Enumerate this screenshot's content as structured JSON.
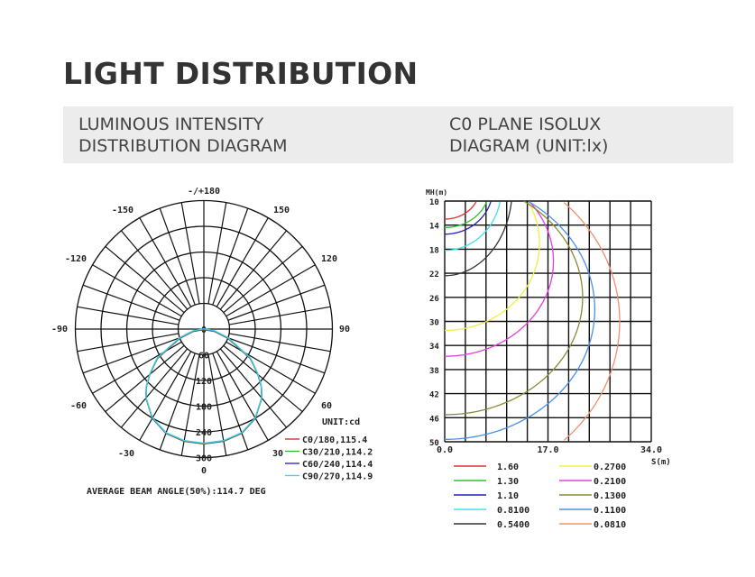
{
  "title": "LIGHT DISTRIBUTION",
  "band": {
    "left_line1": "LUMINOUS INTENSITY",
    "left_line2": "DISTRIBUTION DIAGRAM",
    "right_line1": "C0 PLANE ISOLUX",
    "right_line2": "DIAGRAM (UNIT:lx)"
  },
  "chart_data": [
    {
      "type": "polar",
      "angle_labels": [
        "-/+180",
        "-150",
        "150",
        "-120",
        "120",
        "-90",
        "90",
        "-60",
        "60",
        "-30",
        "30",
        "0"
      ],
      "radial_ticks": [
        "0",
        "60",
        "120",
        "180",
        "240",
        "300"
      ],
      "unit": "UNIT:cd",
      "legend": [
        {
          "name": "C0/180,115.4",
          "color": "#e02020"
        },
        {
          "name": "C30/210,114.2",
          "color": "#20c020"
        },
        {
          "name": "C60/240,114.4",
          "color": "#2020c0"
        },
        {
          "name": "C90/270,114.9",
          "color": "#40d0e0"
        }
      ],
      "gamma_deg": [
        0,
        10,
        20,
        30,
        40,
        45,
        50,
        55,
        58,
        70,
        80,
        90
      ],
      "intensity_cd": [
        267,
        265,
        258,
        240,
        210,
        190,
        165,
        140,
        128,
        60,
        25,
        0
      ],
      "footer": "AVERAGE BEAM ANGLE(50%):114.7 DEG"
    },
    {
      "type": "contour",
      "ylabel": "MH(m)",
      "xlabel": "S(m)",
      "y_ticks": [
        "10",
        "14",
        "18",
        "22",
        "26",
        "30",
        "34",
        "38",
        "42",
        "46",
        "50"
      ],
      "x_ticks": [
        "0.0",
        "17.0",
        "34.0"
      ],
      "xlim": [
        0,
        34
      ],
      "ylim": [
        10,
        50
      ],
      "levels": [
        {
          "value": "1.60",
          "color": "#e03030"
        },
        {
          "value": "1.30",
          "color": "#30c030"
        },
        {
          "value": "1.10",
          "color": "#2020c0"
        },
        {
          "value": "0.8100",
          "color": "#40e0e8"
        },
        {
          "value": "0.5400",
          "color": "#333333"
        },
        {
          "value": "0.2700",
          "color": "#f0f040"
        },
        {
          "value": "0.2100",
          "color": "#e040e0"
        },
        {
          "value": "0.1300",
          "color": "#8a8a3a"
        },
        {
          "value": "0.1100",
          "color": "#4a90e8"
        },
        {
          "value": "0.0810",
          "color": "#f09070"
        }
      ]
    }
  ]
}
